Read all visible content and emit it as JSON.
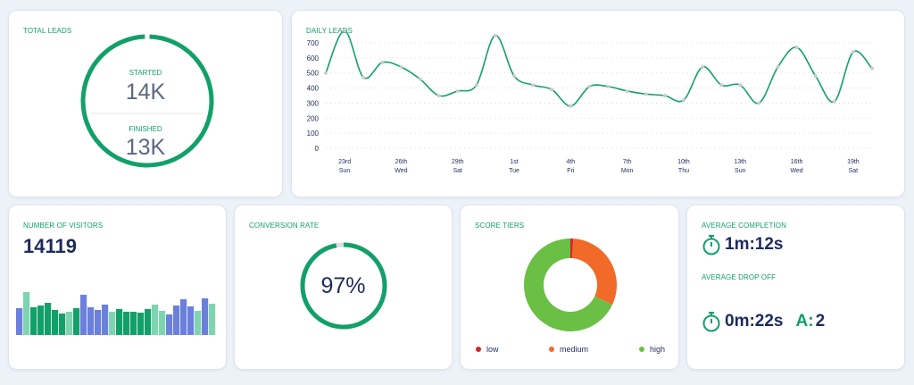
{
  "total_leads": {
    "title": "TOTAL LEADS",
    "started_label": "STARTED",
    "started_value": "14K",
    "finished_label": "FINISHED",
    "finished_value": "13K"
  },
  "daily_leads": {
    "title": "DAILY LEADS"
  },
  "visitors": {
    "title": "NUMBER OF VISITORS",
    "value": "14119"
  },
  "conversion": {
    "title": "CONVERSION RATE",
    "value": "97%",
    "percent": 97
  },
  "score_tiers": {
    "title": "SCORE TIERS",
    "legend": [
      {
        "label": "low",
        "color": "#d8232a"
      },
      {
        "label": "medium",
        "color": "#f26a2a"
      },
      {
        "label": "high",
        "color": "#6abf45"
      }
    ]
  },
  "avg": {
    "completion_title": "AVERAGE COMPLETION",
    "completion_value": "1m:12s",
    "dropoff_title": "AVERAGE DROP OFF",
    "dropoff_value": "0m:22s",
    "dropoff_extra_label": "A:",
    "dropoff_extra_value": "2",
    "timer_icon": "stopwatch-icon"
  },
  "colors": {
    "accent": "#12a06a",
    "text": "#1e2a5e",
    "bar_blue": "#6b7fdc",
    "bar_light": "#7fd4b0"
  },
  "chart_data": [
    {
      "type": "line",
      "title": "DAILY LEADS",
      "ylim": [
        0,
        700
      ],
      "yticks": [
        0,
        100,
        200,
        300,
        400,
        500,
        600,
        700
      ],
      "x_ticks": [
        {
          "day": "23rd",
          "wd": "Sun"
        },
        {
          "day": "26th",
          "wd": "Wed"
        },
        {
          "day": "29th",
          "wd": "Sat"
        },
        {
          "day": "1st",
          "wd": "Tue"
        },
        {
          "day": "4th",
          "wd": "Fri"
        },
        {
          "day": "7th",
          "wd": "Mon"
        },
        {
          "day": "10th",
          "wd": "Thu"
        },
        {
          "day": "13th",
          "wd": "Sun"
        },
        {
          "day": "16th",
          "wd": "Wed"
        },
        {
          "day": "19th",
          "wd": "Sat"
        }
      ],
      "values": [
        500,
        780,
        470,
        570,
        540,
        460,
        350,
        380,
        420,
        750,
        480,
        420,
        390,
        280,
        410,
        410,
        380,
        360,
        350,
        320,
        540,
        420,
        420,
        300,
        540,
        670,
        480,
        310,
        640,
        530
      ],
      "grid": true
    },
    {
      "type": "bar",
      "title": "NUMBER OF VISITORS",
      "values": [
        30,
        48,
        31,
        33,
        36,
        28,
        24,
        26,
        30,
        45,
        31,
        28,
        34,
        26,
        29,
        26,
        26,
        25,
        29,
        34,
        27,
        23,
        33,
        40,
        32,
        27,
        41,
        35
      ],
      "color_index": [
        1,
        2,
        0,
        0,
        0,
        0,
        0,
        2,
        0,
        1,
        1,
        1,
        1,
        2,
        0,
        0,
        0,
        0,
        0,
        2,
        2,
        1,
        1,
        1,
        1,
        2,
        1,
        2
      ]
    },
    {
      "type": "pie",
      "title": "SCORE TIERS",
      "categories": [
        "low",
        "medium",
        "high"
      ],
      "values": [
        1,
        31,
        68
      ]
    }
  ]
}
